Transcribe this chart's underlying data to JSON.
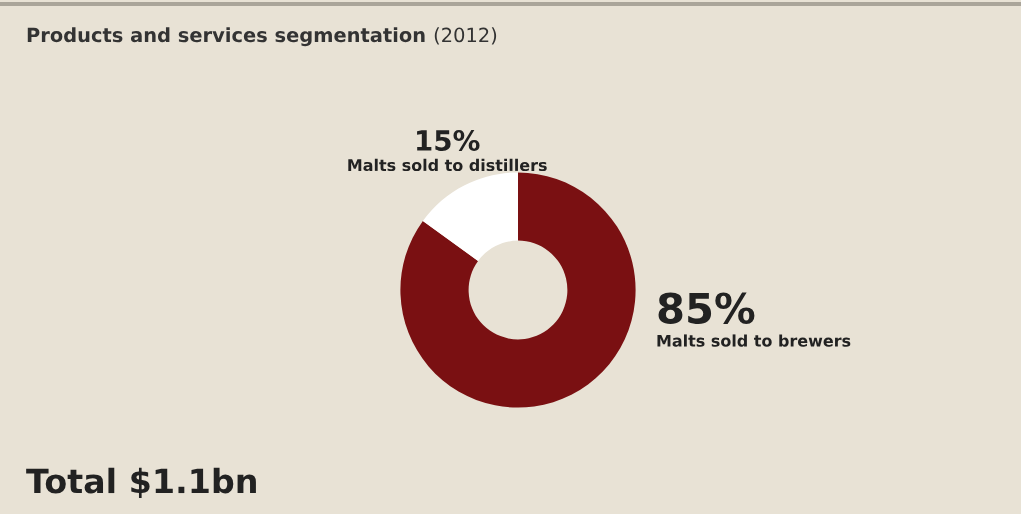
{
  "chart_data": {
    "type": "donut",
    "title": "Products and services segmentation",
    "subtitle": "(2012)",
    "categories": [
      "Malts sold to brewers",
      "Malts sold to distillers"
    ],
    "values": [
      85,
      15
    ],
    "colors": [
      "#7a1012",
      "#ffffff"
    ],
    "value_labels": [
      "85%",
      "15%"
    ],
    "legend": false,
    "annotations": [
      "Total $1.1bn"
    ]
  }
}
